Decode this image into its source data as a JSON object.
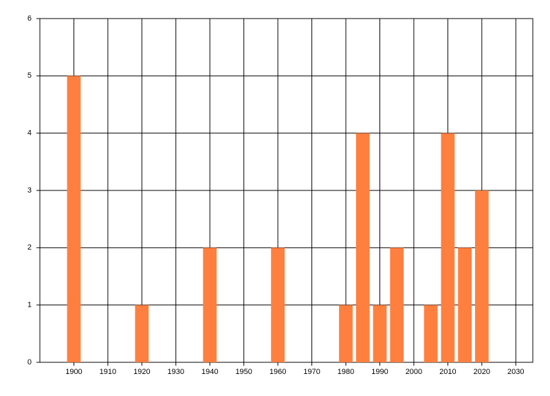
{
  "chart_data": {
    "type": "bar",
    "x": [
      1900,
      1920,
      1940,
      1960,
      1980,
      1985,
      1990,
      1995,
      2005,
      2010,
      2015,
      2020
    ],
    "values": [
      5,
      1,
      2,
      2,
      1,
      4,
      1,
      2,
      1,
      4,
      2,
      3
    ],
    "color": "#ff7f3f",
    "xlim": [
      1890,
      2035
    ],
    "xticks": [
      1900,
      1910,
      1920,
      1930,
      1940,
      1950,
      1960,
      1970,
      1980,
      1990,
      2000,
      2010,
      2020,
      2030
    ],
    "ylim": [
      0,
      6
    ],
    "yticks": [
      0,
      1,
      2,
      3,
      4,
      5,
      6
    ],
    "grid": true
  }
}
